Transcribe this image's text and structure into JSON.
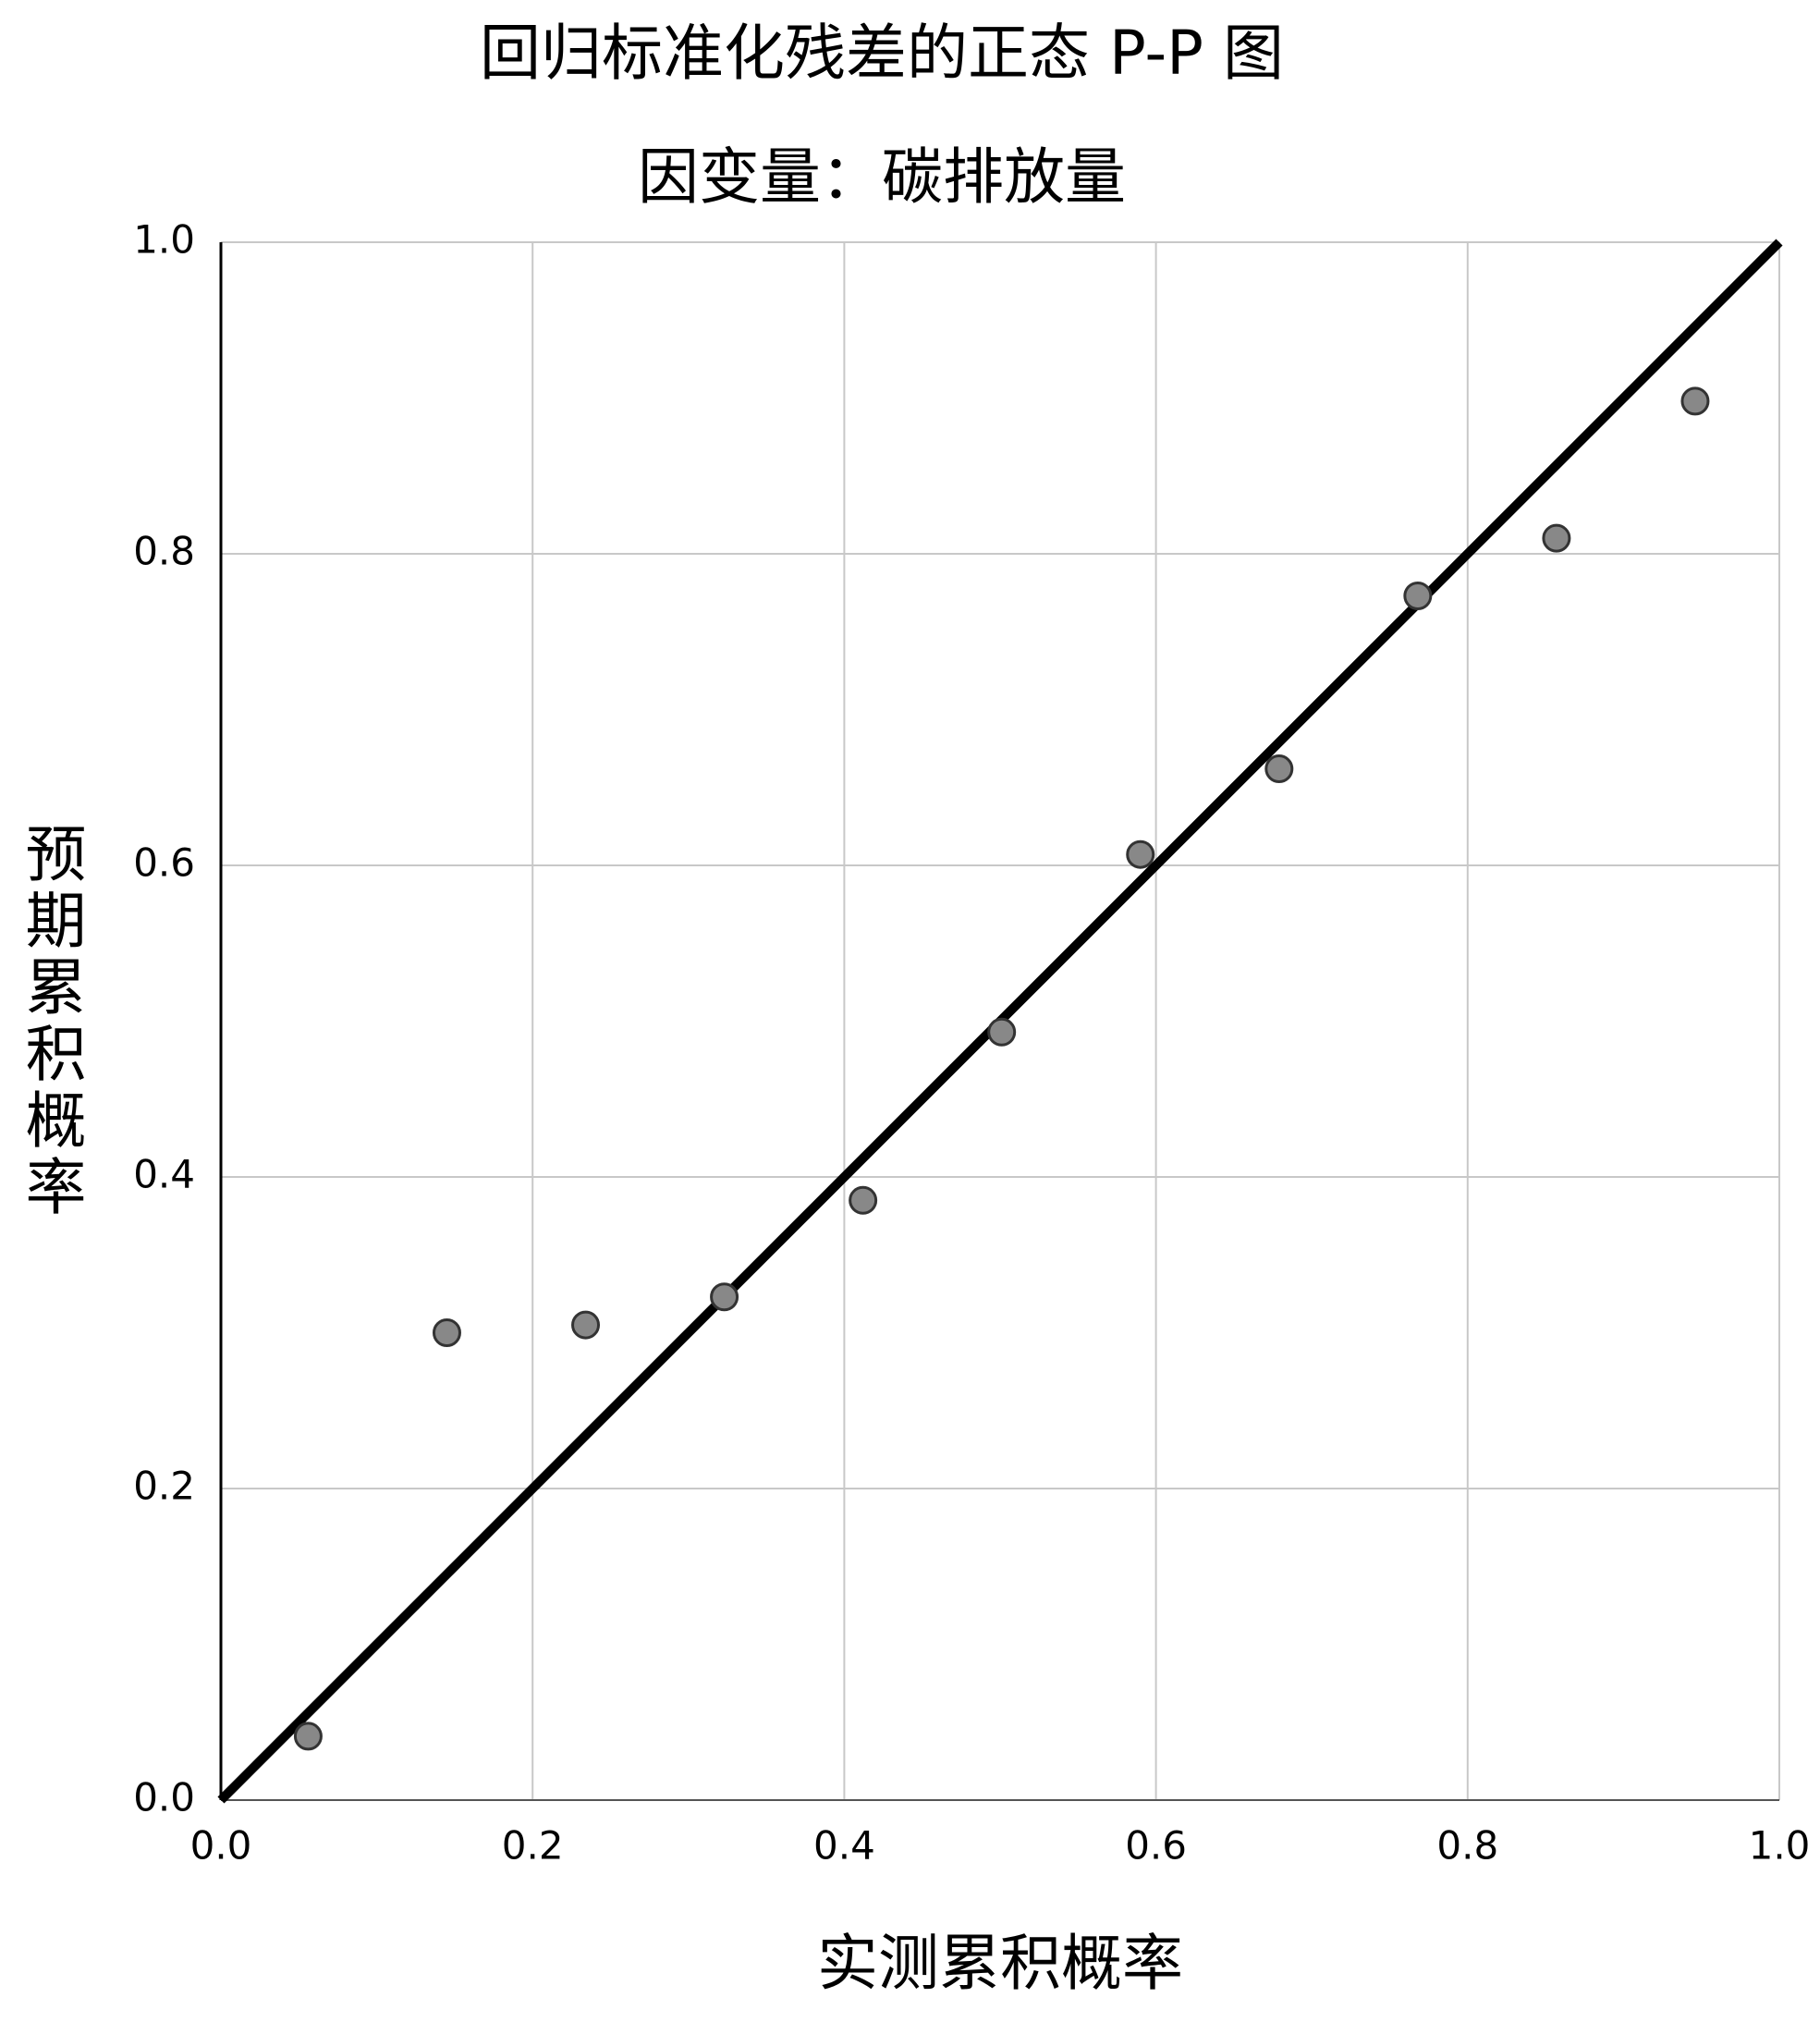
{
  "chart_data": {
    "type": "scatter",
    "title": "回归标准化残差的正态 P-P 图",
    "subtitle": "因变量：碳排放量",
    "x_label": "实测累积概率",
    "y_label": "预期累积概率",
    "x": [
      0.056,
      0.145,
      0.234,
      0.323,
      0.412,
      0.501,
      0.59,
      0.679,
      0.768,
      0.857,
      0.946
    ],
    "values": [
      0.041,
      0.3,
      0.305,
      0.323,
      0.385,
      0.493,
      0.607,
      0.662,
      0.773,
      0.81,
      0.898
    ],
    "color": "#888888",
    "xlim": [
      0,
      1
    ],
    "ylim": [
      0,
      1
    ],
    "xticks": [
      {
        "value": 0,
        "label": "0.0"
      },
      0.2,
      0.4,
      0.6,
      0.8,
      {
        "value": 1,
        "label": "1.0"
      }
    ],
    "yticks": [
      {
        "value": 0,
        "label": "0.0"
      },
      0.2,
      0.4,
      0.6,
      0.8,
      {
        "value": 1,
        "label": "1.0"
      }
    ],
    "grid": true,
    "diagonal": true
  }
}
